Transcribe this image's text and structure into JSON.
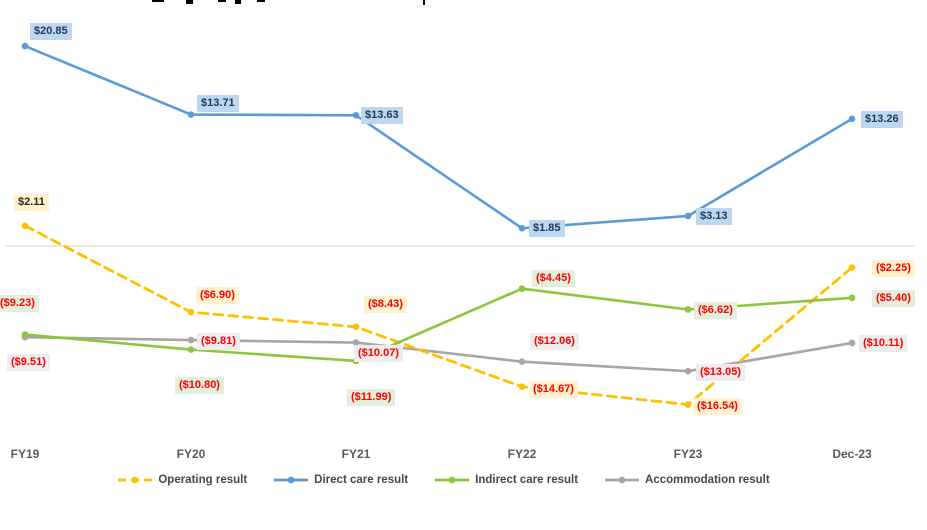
{
  "chart_data": {
    "type": "line",
    "categories": [
      "FY19",
      "FY20",
      "FY21",
      "FY22",
      "FY23",
      "Dec-23"
    ],
    "series": [
      {
        "name": "Operating result",
        "color": "#FFC000",
        "line_style": "dashed",
        "values": [
          2.11,
          -6.9,
          -8.43,
          -14.67,
          -16.54,
          -2.25
        ],
        "labels": [
          "$2.11",
          "($6.90)",
          "($8.43)",
          "($14.67)",
          "($16.54)",
          "($2.25)"
        ],
        "label_bg": "#FFF2CC"
      },
      {
        "name": "Direct care result",
        "color": "#5B9BD5",
        "line_style": "solid",
        "values": [
          20.85,
          13.71,
          13.63,
          1.85,
          3.13,
          13.26
        ],
        "labels": [
          "$20.85",
          "$13.71",
          "$13.63",
          "$1.85",
          "$3.13",
          "$13.26"
        ],
        "label_bg": "#BDD7EE",
        "label_text_color": "#1F3864"
      },
      {
        "name": "Indirect care result",
        "color": "#8CC63F",
        "line_style": "solid",
        "values": [
          -9.23,
          -10.8,
          -11.99,
          -4.45,
          -6.62,
          -5.4
        ],
        "labels": [
          "($9.23)",
          "($10.80)",
          "($11.99)",
          "($4.45)",
          "($6.62)",
          "($5.40)"
        ],
        "label_bg": "#E2EFDA"
      },
      {
        "name": "Accommodation result",
        "color": "#A6A6A6",
        "line_style": "solid",
        "values": [
          -9.51,
          -9.81,
          -10.07,
          -12.06,
          -13.05,
          -10.11
        ],
        "labels": [
          "($9.51)",
          "($9.81)",
          "($10.07)",
          "($12.06)",
          "($13.05)",
          "($10.11)"
        ],
        "label_bg": "#EDEDED"
      }
    ],
    "title": "",
    "xlabel": "",
    "ylabel": "",
    "ylim": [
      -20,
      25
    ],
    "grid": "zero-baseline-only",
    "legend_position": "bottom",
    "negative_label_color": "#FF0000",
    "positive_label_color": "#262626",
    "baseline_color": "#D9D9D9"
  },
  "legend": {
    "items": [
      {
        "label": "Operating result"
      },
      {
        "label": "Direct care result"
      },
      {
        "label": "Indirect care result"
      },
      {
        "label": "Accommodation result"
      }
    ]
  }
}
